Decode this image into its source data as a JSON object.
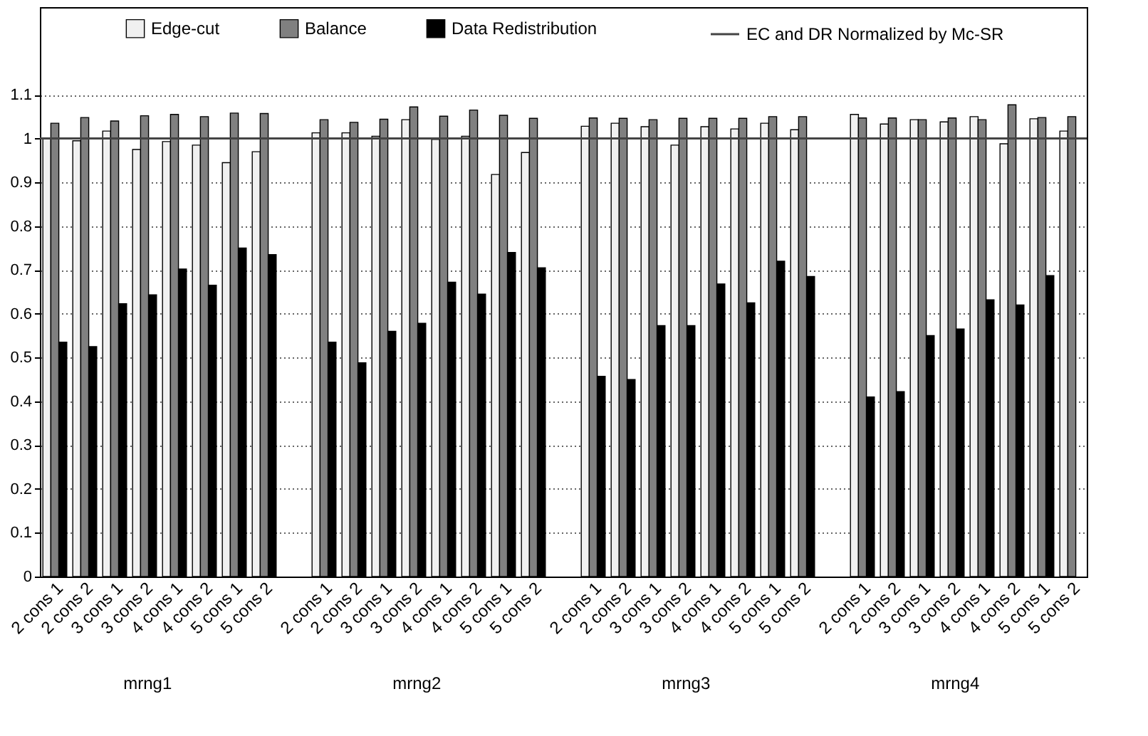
{
  "chart_data": {
    "type": "bar",
    "categories": [
      "2 cons 1",
      "2 cons 2",
      "3 cons 1",
      "3 cons 2",
      "4 cons 1",
      "4 cons 2",
      "5 cons 1",
      "5 cons 2",
      null,
      "2 cons 1",
      "2 cons 2",
      "3 cons 1",
      "3 cons 2",
      "4 cons 1",
      "4 cons 2",
      "5 cons 1",
      "5 cons 2",
      null,
      "2 cons 1",
      "2 cons 2",
      "3 cons 1",
      "3 cons 2",
      "4 cons 1",
      "4 cons 2",
      "5 cons 1",
      "5 cons 2",
      null,
      "2 cons 1",
      "2 cons 2",
      "3 cons 1",
      "3 cons 2",
      "4 cons 1",
      "4 cons 2",
      "5 cons 1",
      "5 cons 2"
    ],
    "series": [
      {
        "name": "Edge-cut",
        "color": "#f0f0f0",
        "values": [
          1.0,
          0.995,
          1.017,
          0.975,
          0.993,
          0.985,
          0.945,
          0.97,
          null,
          1.013,
          1.013,
          1.005,
          1.043,
          0.998,
          1.005,
          0.918,
          0.968,
          null,
          1.028,
          1.035,
          1.027,
          0.985,
          1.027,
          1.022,
          1.035,
          1.02,
          null,
          1.055,
          1.033,
          1.043,
          1.038,
          1.05,
          0.988,
          1.045,
          1.017
        ]
      },
      {
        "name": "Balance",
        "color": "#808080",
        "values": [
          1.035,
          1.048,
          1.04,
          1.052,
          1.055,
          1.05,
          1.058,
          1.057,
          null,
          1.043,
          1.037,
          1.044,
          1.072,
          1.051,
          1.065,
          1.053,
          1.046,
          null,
          1.047,
          1.046,
          1.043,
          1.046,
          1.046,
          1.046,
          1.05,
          1.05,
          null,
          1.047,
          1.047,
          1.043,
          1.047,
          1.043,
          1.077,
          1.048,
          1.05
        ]
      },
      {
        "name": "Data Redistribution",
        "color": "#000000",
        "values": [
          0.535,
          0.525,
          0.623,
          0.643,
          0.702,
          0.665,
          0.75,
          0.735,
          null,
          0.535,
          0.488,
          0.56,
          0.578,
          0.672,
          0.645,
          0.74,
          0.705,
          null,
          0.457,
          0.45,
          0.573,
          0.573,
          0.668,
          0.625,
          0.72,
          0.685,
          null,
          0.41,
          0.422,
          0.55,
          0.565,
          0.632,
          0.62,
          0.687,
          null
        ]
      }
    ],
    "ref_lines": [
      {
        "axis": "y",
        "value": 1,
        "label": "EC and DR Normalized by Mc-SR",
        "color": "#444444"
      }
    ],
    "annotations": [
      "mrng1",
      "mrng2",
      "mrng3",
      "mrng4"
    ],
    "ylim": [
      0,
      1.3
    ],
    "yticks": [
      0,
      0.1,
      0.2,
      0.3,
      0.4,
      0.5,
      0.6,
      0.7,
      0.8,
      0.9,
      1,
      1.1
    ],
    "grid": "y",
    "legend": "top"
  }
}
